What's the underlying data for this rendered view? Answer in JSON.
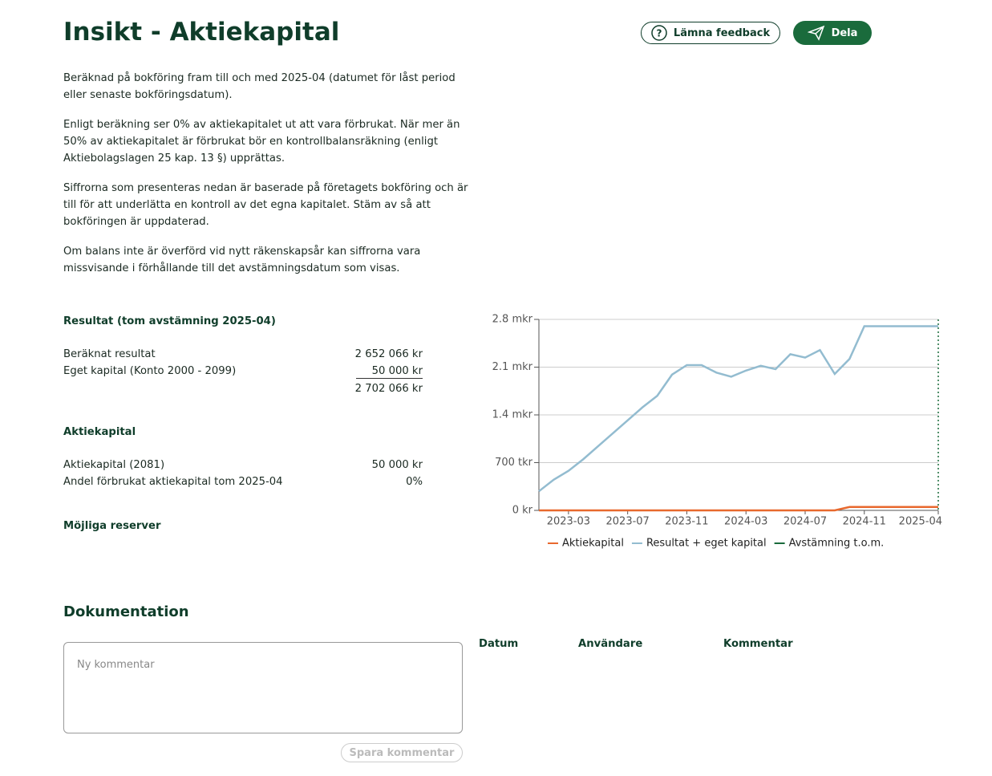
{
  "header": {
    "title": "Insikt - Aktiekapital",
    "buttons": [
      "Lämna feedback",
      "Dela"
    ]
  },
  "intro": [
    "Beräknad på bokföring fram till och med 2025-04 (datumet för låst period eller senaste bokföringsdatum).",
    "Enligt beräkning ser 0% av aktiekapitalet ut att vara förbrukat. När mer än 50% av aktiekapitalet är förbrukat bör en kontrollbalansräkning (enligt Aktiebolagslagen 25 kap. 13 §) upprättas.",
    "Siffrorna som presenteras nedan är baserade på företagets bokföring och är till för att underlätta en kontroll av det egna kapitalet. Stäm av så att bokföringen är uppdaterad.",
    "Om balans inte är överförd vid nytt räkenskapsår kan siffrorna vara missvisande i förhållande till det avstämningsdatum som visas."
  ],
  "result": {
    "heading": "Resultat (tom avstämning 2025-04)",
    "rows": [
      [
        "Beräknat resultat",
        "2 652 066 kr"
      ],
      [
        "Eget kapital (Konto 2000 - 2099)",
        "50 000 kr"
      ]
    ],
    "total": "2 702 066 kr"
  },
  "share_capital": {
    "heading": "Aktiekapital",
    "rows": [
      [
        "Aktiekapital (2081)",
        "50 000 kr"
      ],
      [
        "Andel förbrukat aktiekapital tom 2025-04",
        "0%"
      ]
    ]
  },
  "reserves": {
    "heading": "Möjliga reserver"
  },
  "documentation": {
    "heading": "Dokumentation",
    "placeholder": "Ny kommentar",
    "button": "Spara kommentar",
    "columns": [
      "Datum",
      "Användare",
      "Kommentar"
    ]
  },
  "chart_data": {
    "type": "line",
    "x": [
      "2023-01",
      "2023-02",
      "2023-03",
      "2023-04",
      "2023-05",
      "2023-06",
      "2023-07",
      "2023-08",
      "2023-09",
      "2023-10",
      "2023-11",
      "2023-12",
      "2024-01",
      "2024-02",
      "2024-03",
      "2024-04",
      "2024-05",
      "2024-06",
      "2024-07",
      "2024-08",
      "2024-09",
      "2024-10",
      "2024-11",
      "2024-12",
      "2025-01",
      "2025-02",
      "2025-03",
      "2025-04"
    ],
    "series": [
      {
        "name": "Aktiekapital",
        "color": "#e8692e",
        "values": [
          0,
          0,
          0,
          0,
          0,
          0,
          0,
          0,
          0,
          0,
          0,
          0,
          0,
          0,
          0,
          0,
          0,
          0,
          0,
          0,
          0,
          50000,
          50000,
          50000,
          50000,
          50000,
          50000,
          50000
        ]
      },
      {
        "name": "Resultat + eget kapital",
        "color": "#93bcd0",
        "values": [
          280000,
          450000,
          580000,
          750000,
          940000,
          1130000,
          1320000,
          1510000,
          1680000,
          1990000,
          2130000,
          2130000,
          2020000,
          1960000,
          2050000,
          2120000,
          2070000,
          2290000,
          2240000,
          2350000,
          2000000,
          2220000,
          2700000,
          2700000,
          2700000,
          2700000,
          2700000,
          2700000
        ]
      },
      {
        "name": "Avstämning t.o.m.",
        "color": "#1a6b3c",
        "x": "2025-04"
      }
    ],
    "ylim": [
      0,
      2800000
    ],
    "yticks": [
      {
        "value": 0,
        "label": "0 kr"
      },
      {
        "value": 700000,
        "label": "700 tkr"
      },
      {
        "value": 1400000,
        "label": "1.4 mkr"
      },
      {
        "value": 2100000,
        "label": "2.1 mkr"
      },
      {
        "value": 2800000,
        "label": "2.8 mkr"
      }
    ],
    "xticks": [
      "2023-03",
      "2023-07",
      "2023-11",
      "2024-03",
      "2024-07",
      "2024-11",
      "2025-04"
    ],
    "grid": true
  }
}
